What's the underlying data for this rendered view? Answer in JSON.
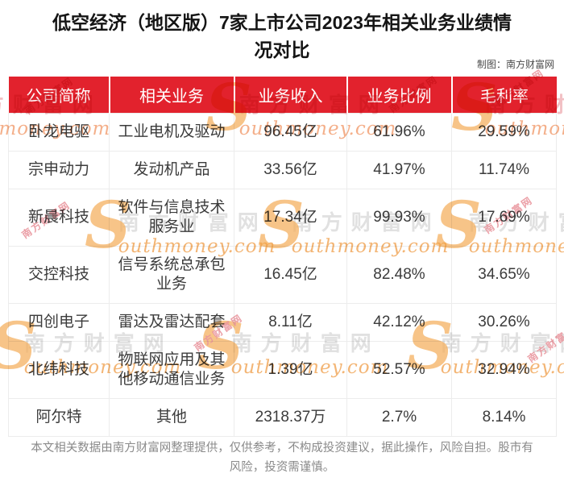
{
  "title": "低空经济（地区版）7家上市公司2023年相关业务业绩情况对比",
  "credit": "制图：南方财富网",
  "footer": "本文相关数据由南方财富网整理提供，仅供参考，不构成投资建议，据此操作，风险自担。股市有风险，投资需谨慎。",
  "colors": {
    "header_bg": "#e2222d",
    "header_text": "#ffffff",
    "body_text": "#3b3b3b",
    "footer_text": "#8a8a8a",
    "border": "#ececec",
    "watermark_pink": "#f0b6ba",
    "watermark_gray": "#dcdcdc",
    "watermark_orange": "#f1a95d"
  },
  "watermark": {
    "cn": "南方财富网",
    "s": "S",
    "en": "outhmoney.com"
  },
  "chart_data": {
    "type": "table",
    "title": "低空经济（地区版）7家上市公司2023年相关业务业绩情况对比",
    "columns": [
      "公司简称",
      "相关业务",
      "业务收入",
      "业务比例",
      "毛利率"
    ],
    "rows": [
      [
        "卧龙电驱",
        "工业电机及驱动",
        "96.45亿",
        "61.96%",
        "29.59%"
      ],
      [
        "宗申动力",
        "发动机产品",
        "33.56亿",
        "41.97%",
        "11.74%"
      ],
      [
        "新晨科技",
        "软件与信息技术服务业",
        "17.34亿",
        "99.93%",
        "17.69%"
      ],
      [
        "交控科技",
        "信号系统总承包业务",
        "16.45亿",
        "82.48%",
        "34.65%"
      ],
      [
        "四创电子",
        "雷达及雷达配套",
        "8.11亿",
        "42.12%",
        "30.26%"
      ],
      [
        "北纬科技",
        "物联网应用及其他移动通信业务",
        "1.39亿",
        "52.57%",
        "32.94%"
      ],
      [
        "阿尔特",
        "其他",
        "2318.37万",
        "2.7%",
        "8.14%"
      ]
    ]
  }
}
